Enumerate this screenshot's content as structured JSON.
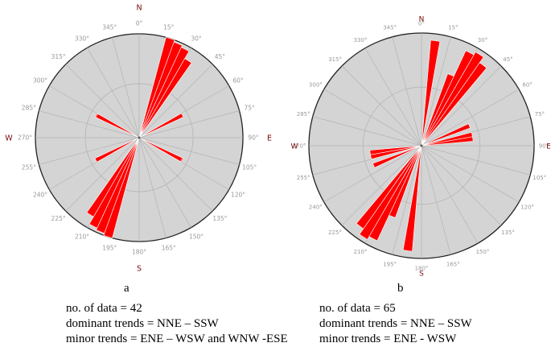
{
  "chart_data": [
    {
      "type": "rose",
      "panel_label": "a",
      "compass": {
        "north": "N",
        "east": "E",
        "south": "S",
        "west": "W"
      },
      "angle_ticks": [
        "0°",
        "15°",
        "30°",
        "45°",
        "60°",
        "75°",
        "90°",
        "105°",
        "120°",
        "135°",
        "150°",
        "165°",
        "180°",
        "195°",
        "210°",
        "225°",
        "240°",
        "255°",
        "270°",
        "285°",
        "300°",
        "315°",
        "330°",
        "345°"
      ],
      "bin_width_deg": 5,
      "radial_max": 1.0,
      "grid": true,
      "petals": [
        {
          "direction_deg": 17.5,
          "value": 1.0
        },
        {
          "direction_deg": 22.5,
          "value": 0.96
        },
        {
          "direction_deg": 27.5,
          "value": 0.93
        },
        {
          "direction_deg": 32.5,
          "value": 0.85
        },
        {
          "direction_deg": 62.5,
          "value": 0.45
        },
        {
          "direction_deg": 117.5,
          "value": 0.47
        },
        {
          "direction_deg": 197.5,
          "value": 1.0
        },
        {
          "direction_deg": 202.5,
          "value": 0.98
        },
        {
          "direction_deg": 207.5,
          "value": 0.96
        },
        {
          "direction_deg": 212.5,
          "value": 0.88
        },
        {
          "direction_deg": 242.5,
          "value": 0.47
        },
        {
          "direction_deg": 297.5,
          "value": 0.46
        }
      ],
      "notes": [
        "no. of data = 42",
        "dominant trends = NNE – SSW",
        "minor trends = ENE – WSW and WNW -ESE"
      ],
      "colors": {
        "petal": "#ff0000",
        "disc": "#d4d4d4",
        "grid": "#b4b4b4",
        "rim": "#222222",
        "compass": "#7a0a0a",
        "ticks": "#999999"
      }
    },
    {
      "type": "rose",
      "panel_label": "b",
      "compass": {
        "north": "N",
        "east": "E",
        "south": "S",
        "west": "W"
      },
      "angle_ticks": [
        "0°",
        "15°",
        "30°",
        "45°",
        "60°",
        "75°",
        "90°",
        "105°",
        "120°",
        "135°",
        "150°",
        "165°",
        "180°",
        "195°",
        "210°",
        "225°",
        "240°",
        "255°",
        "270°",
        "285°",
        "300°",
        "315°",
        "330°",
        "345°"
      ],
      "bin_width_deg": 5,
      "radial_max": 1.0,
      "grid": true,
      "petals": [
        {
          "direction_deg": 7.5,
          "value": 0.86
        },
        {
          "direction_deg": 27.5,
          "value": 0.82
        },
        {
          "direction_deg": 32.5,
          "value": 0.86
        },
        {
          "direction_deg": 37.5,
          "value": 0.82
        },
        {
          "direction_deg": 22.5,
          "value": 0.48
        },
        {
          "direction_deg": 67.5,
          "value": 0.46
        },
        {
          "direction_deg": 77.5,
          "value": 0.46
        },
        {
          "direction_deg": 187.5,
          "value": 0.94
        },
        {
          "direction_deg": 202.5,
          "value": 0.68
        },
        {
          "direction_deg": 207.5,
          "value": 0.93
        },
        {
          "direction_deg": 212.5,
          "value": 0.96
        },
        {
          "direction_deg": 217.5,
          "value": 0.9
        },
        {
          "direction_deg": 257.5,
          "value": 0.46
        },
        {
          "direction_deg": 262.5,
          "value": 0.46
        }
      ],
      "notes": [
        "no. of data = 65",
        "dominant trends = NNE – SSW",
        "minor trends = ENE - WSW"
      ],
      "colors": {
        "petal": "#ff0000",
        "disc": "#d4d4d4",
        "grid": "#b4b4b4",
        "rim": "#222222",
        "compass": "#7a0a0a",
        "ticks": "#999999"
      }
    }
  ]
}
